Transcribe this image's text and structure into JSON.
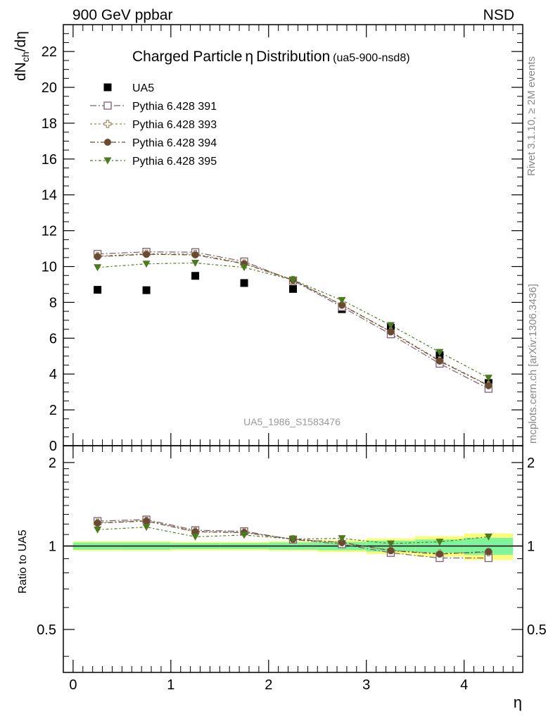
{
  "header": {
    "left": "900 GeV ppbar",
    "right": "NSD"
  },
  "side_text": {
    "rivet": "Rivet 3.1.10, ≥ 2M events",
    "mcplots": "mcplots.cern.ch [arXiv:1306.3436]"
  },
  "colors": {
    "data": "#000000",
    "p391": "#7f5f6f",
    "p393": "#9a8a55",
    "p394": "#6b4a35",
    "p395": "#4c7a1e",
    "band_green": "#7ff49a",
    "band_yellow": "#fbfb7a"
  },
  "chart_data": [
    {
      "type": "scatter",
      "title": "Charged Particle",
      "title_symbol": "η",
      "title_rest": "Distribution",
      "title_tag": "(ua5-900-nsd8)",
      "ylabel": "dN",
      "ylabel_sub": "ch",
      "ylabel_rest": "/dη",
      "watermark": "UA5_1986_S1583476",
      "xlim": [
        -0.1,
        4.6
      ],
      "ylim": [
        0,
        23.5
      ],
      "yticks": [
        0,
        2,
        4,
        6,
        8,
        10,
        12,
        14,
        16,
        18,
        20,
        22
      ],
      "legend_position": "top-left",
      "x": [
        0.25,
        0.75,
        1.25,
        1.75,
        2.25,
        2.75,
        3.25,
        3.75,
        4.25
      ],
      "series": [
        {
          "name": "UA5",
          "key": "data",
          "marker": "square-filled",
          "values": [
            8.7,
            8.68,
            9.48,
            9.08,
            8.75,
            7.62,
            6.58,
            5.05,
            3.5
          ]
        },
        {
          "name": "Pythia 6.428 391",
          "key": "p391",
          "marker": "square-open",
          "values": [
            10.7,
            10.82,
            10.8,
            10.28,
            9.22,
            7.74,
            6.22,
            4.58,
            3.18
          ]
        },
        {
          "name": "Pythia 6.428 393",
          "key": "p393",
          "marker": "cross-open",
          "values": [
            10.58,
            10.72,
            10.7,
            10.18,
            9.26,
            7.86,
            6.38,
            4.76,
            3.38
          ]
        },
        {
          "name": "Pythia 6.428 394",
          "key": "p394",
          "marker": "circle-filled",
          "values": [
            10.55,
            10.68,
            10.65,
            10.15,
            9.25,
            7.85,
            6.35,
            4.72,
            3.35
          ]
        },
        {
          "name": "Pythia 6.428 395",
          "key": "p395",
          "marker": "triangle-down",
          "values": [
            9.95,
            10.15,
            10.2,
            9.95,
            9.25,
            8.12,
            6.72,
            5.22,
            3.78
          ]
        }
      ]
    },
    {
      "type": "scatter",
      "ylabel": "Ratio to UA5",
      "xlabel": "η",
      "xlim": [
        -0.1,
        4.6
      ],
      "ylim": [
        0.35,
        2.3
      ],
      "yticks": [
        0.5,
        1,
        2
      ],
      "xticks": [
        0,
        1,
        2,
        3,
        4
      ],
      "x": [
        0.25,
        0.75,
        1.25,
        1.75,
        2.25,
        2.75,
        3.25,
        3.75,
        4.25
      ],
      "bands": {
        "edges": [
          0.0,
          0.5,
          1.0,
          1.5,
          2.0,
          2.5,
          3.0,
          3.5,
          4.0,
          4.5
        ],
        "green_half_width": [
          0.03,
          0.03,
          0.025,
          0.025,
          0.03,
          0.035,
          0.045,
          0.055,
          0.07
        ],
        "yellow_half_width": [
          0.04,
          0.04,
          0.035,
          0.035,
          0.04,
          0.05,
          0.065,
          0.085,
          0.11
        ]
      },
      "series": [
        {
          "name": "Pythia 6.428 391",
          "key": "p391",
          "marker": "square-open",
          "values": [
            1.23,
            1.245,
            1.14,
            1.13,
            1.055,
            1.015,
            0.945,
            0.905,
            0.905
          ]
        },
        {
          "name": "Pythia 6.428 393",
          "key": "p393",
          "marker": "cross-open",
          "values": [
            1.215,
            1.235,
            1.13,
            1.12,
            1.06,
            1.03,
            0.965,
            0.94,
            0.95
          ]
        },
        {
          "name": "Pythia 6.428 394",
          "key": "p394",
          "marker": "circle-filled",
          "values": [
            1.21,
            1.23,
            1.125,
            1.118,
            1.058,
            1.03,
            0.962,
            0.935,
            0.955
          ]
        },
        {
          "name": "Pythia 6.428 395",
          "key": "p395",
          "marker": "triangle-down",
          "values": [
            1.145,
            1.17,
            1.08,
            1.095,
            1.06,
            1.065,
            1.02,
            1.035,
            1.08
          ]
        }
      ]
    }
  ]
}
